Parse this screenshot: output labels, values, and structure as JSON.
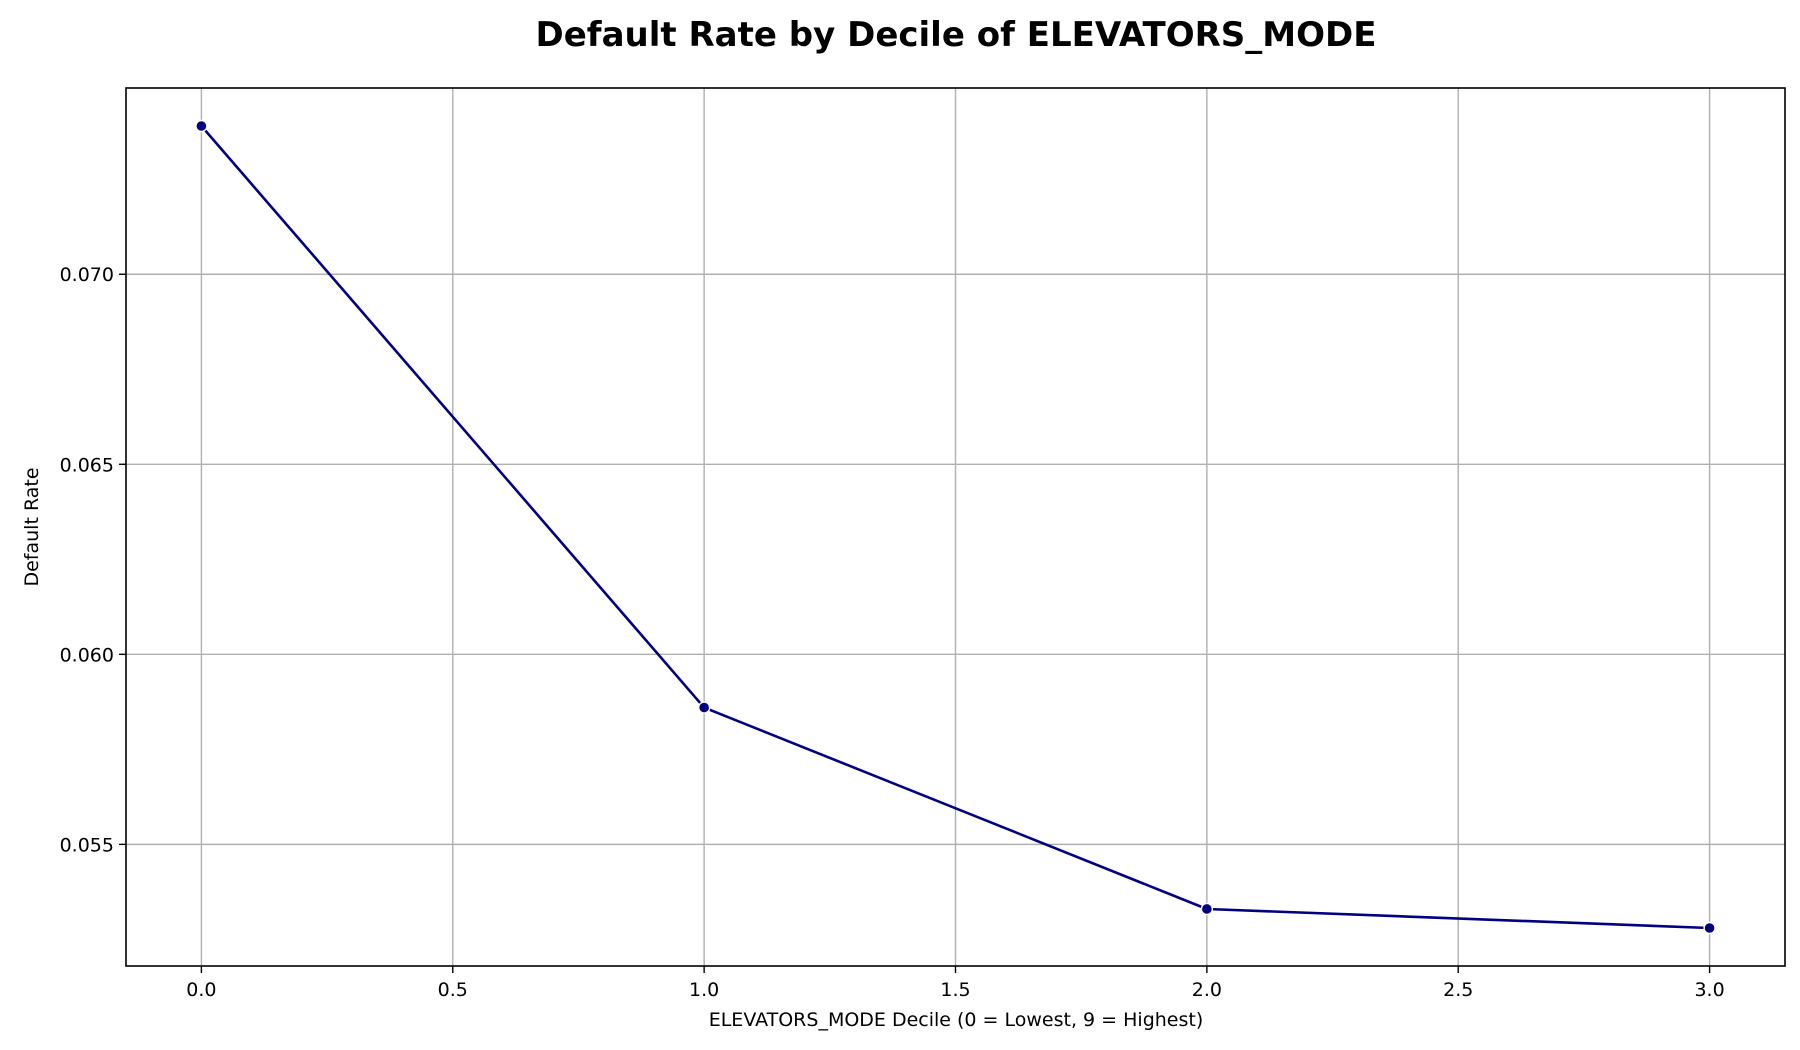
{
  "chart_data": {
    "type": "line",
    "title": "Default Rate by Decile of ELEVATORS_MODE",
    "xlabel": "ELEVATORS_MODE Decile (0 = Lowest, 9 = Highest)",
    "ylabel": "Default Rate",
    "xlim": [
      -0.15,
      3.15
    ],
    "ylim": [
      0.0518,
      0.0749
    ],
    "xticks": [
      0.0,
      0.5,
      1.0,
      1.5,
      2.0,
      2.5,
      3.0
    ],
    "xtick_labels": [
      "0.0",
      "0.5",
      "1.0",
      "1.5",
      "2.0",
      "2.5",
      "3.0"
    ],
    "yticks": [
      0.055,
      0.06,
      0.065,
      0.07
    ],
    "ytick_labels": [
      "0.055",
      "0.060",
      "0.065",
      "0.070"
    ],
    "grid": true,
    "series": [
      {
        "color": "#000080",
        "marker": "circle",
        "x": [
          0,
          1,
          2,
          3
        ],
        "y": [
          0.0739,
          0.0586,
          0.0533,
          0.0528
        ]
      }
    ]
  }
}
